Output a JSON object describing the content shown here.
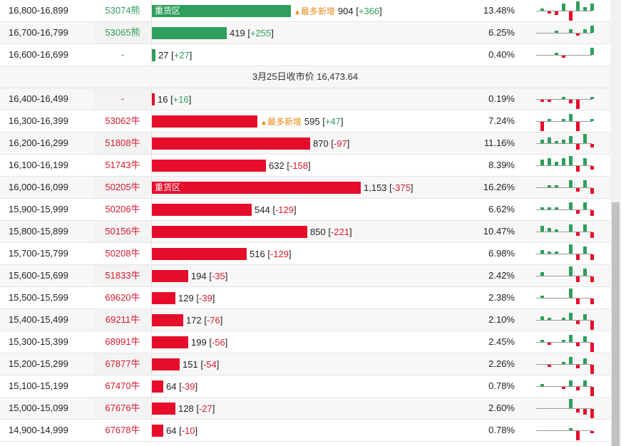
{
  "colors": {
    "up": "#2e9f5c",
    "down": "#e60d2b",
    "note": "#e88a16"
  },
  "separator": {
    "label": "3月25日收市价 16,473.64"
  },
  "upper_rows": [
    {
      "range": "16,800-16,899",
      "ent": "53074熊",
      "bar": 0.5,
      "tag": "重货区",
      "note": "最多新增",
      "value": "904",
      "diff": "+366",
      "pct": "13.48%",
      "spark": [
        1,
        -1,
        -2,
        4,
        -5,
        5,
        2,
        4
      ]
    },
    {
      "range": "16,700-16,799",
      "ent": "53065熊",
      "bar": 0.27,
      "tag": "",
      "note": "",
      "value": "419",
      "diff": "+255",
      "pct": "6.25%",
      "spark": [
        0,
        0,
        1,
        0,
        2,
        -1,
        2,
        4
      ]
    },
    {
      "range": "16,600-16,699",
      "ent": "-",
      "bar": 0.014,
      "tag": "",
      "note": "",
      "value": "27",
      "diff": "+27",
      "pct": "0.40%",
      "spark": [
        0,
        0,
        1,
        -1,
        0,
        0,
        0,
        4
      ]
    }
  ],
  "lower_rows": [
    {
      "range": "16,400-16,499",
      "ent": "-",
      "bar": 0.009,
      "tag": "",
      "note": "",
      "value": "16",
      "diff": "+16",
      "pct": "0.19%",
      "spark": [
        -1,
        -1,
        0,
        1,
        -2,
        -5,
        0,
        1
      ]
    },
    {
      "range": "16,300-16,399",
      "ent": "53062牛",
      "bar": 0.38,
      "tag": "",
      "note": "最多新增",
      "value": "595",
      "diff": "+47",
      "pct": "7.24%",
      "spark": [
        -5,
        1,
        0,
        1,
        4,
        -5,
        0,
        1
      ]
    },
    {
      "range": "16,200-16,299",
      "ent": "51808牛",
      "bar": 0.57,
      "tag": "",
      "note": "",
      "value": "870",
      "diff": "-97",
      "pct": "11.16%",
      "spark": [
        2,
        3,
        1,
        2,
        4,
        -3,
        5,
        -2
      ]
    },
    {
      "range": "16,100-16,199",
      "ent": "51743牛",
      "bar": 0.41,
      "tag": "",
      "note": "",
      "value": "632",
      "diff": "-158",
      "pct": "8.39%",
      "spark": [
        3,
        4,
        2,
        4,
        5,
        -3,
        4,
        -2
      ]
    },
    {
      "range": "16,000-16,099",
      "ent": "50205牛",
      "bar": 0.75,
      "tag": "重货区",
      "note": "",
      "value": "1,153",
      "diff": "-375",
      "pct": "16.26%",
      "spark": [
        0,
        1,
        1,
        0,
        4,
        -2,
        4,
        -3
      ]
    },
    {
      "range": "15,900-15,999",
      "ent": "50206牛",
      "bar": 0.36,
      "tag": "",
      "note": "",
      "value": "544",
      "diff": "-129",
      "pct": "6.62%",
      "spark": [
        1,
        1,
        1,
        0,
        4,
        -2,
        4,
        -3
      ]
    },
    {
      "range": "15,800-15,899",
      "ent": "50156牛",
      "bar": 0.56,
      "tag": "",
      "note": "",
      "value": "850",
      "diff": "-221",
      "pct": "10.47%",
      "spark": [
        3,
        2,
        1,
        0,
        4,
        -2,
        4,
        -3
      ]
    },
    {
      "range": "15,700-15,799",
      "ent": "50208牛",
      "bar": 0.34,
      "tag": "",
      "note": "",
      "value": "516",
      "diff": "-129",
      "pct": "6.98%",
      "spark": [
        2,
        1,
        1,
        0,
        5,
        -3,
        4,
        -3
      ]
    },
    {
      "range": "15,600-15,699",
      "ent": "51833牛",
      "bar": 0.13,
      "tag": "",
      "note": "",
      "value": "194",
      "diff": "-35",
      "pct": "2.42%",
      "spark": [
        2,
        0,
        0,
        0,
        5,
        -3,
        4,
        -3
      ]
    },
    {
      "range": "15,500-15,599",
      "ent": "69620牛",
      "bar": 0.085,
      "tag": "",
      "note": "",
      "value": "129",
      "diff": "-39",
      "pct": "2.38%",
      "spark": [
        1,
        0,
        0,
        0,
        5,
        -3,
        0,
        -3
      ]
    },
    {
      "range": "15,400-15,499",
      "ent": "69211牛",
      "bar": 0.113,
      "tag": "",
      "note": "",
      "value": "172",
      "diff": "-76",
      "pct": "2.10%",
      "spark": [
        2,
        1,
        0,
        1,
        4,
        -2,
        3,
        -5
      ]
    },
    {
      "range": "15,300-15,399",
      "ent": "68991牛",
      "bar": 0.13,
      "tag": "",
      "note": "",
      "value": "199",
      "diff": "-56",
      "pct": "2.45%",
      "spark": [
        1,
        -1,
        0,
        1,
        4,
        -2,
        3,
        -5
      ]
    },
    {
      "range": "15,200-15,299",
      "ent": "67877牛",
      "bar": 0.1,
      "tag": "",
      "note": "",
      "value": "151",
      "diff": "-54",
      "pct": "2.26%",
      "spark": [
        0,
        -1,
        0,
        1,
        4,
        -2,
        3,
        -5
      ]
    },
    {
      "range": "15,100-15,199",
      "ent": "67470牛",
      "bar": 0.042,
      "tag": "",
      "note": "",
      "value": "64",
      "diff": "-39",
      "pct": "0.78%",
      "spark": [
        1,
        0,
        0,
        -1,
        3,
        -2,
        3,
        -5
      ]
    },
    {
      "range": "15,000-15,099",
      "ent": "67676牛",
      "bar": 0.084,
      "tag": "",
      "note": "",
      "value": "128",
      "diff": "-27",
      "pct": "2.60%",
      "spark": [
        0,
        0,
        0,
        0,
        5,
        -2,
        -3,
        -5
      ]
    },
    {
      "range": "14,900-14,999",
      "ent": "67678牛",
      "bar": 0.042,
      "tag": "",
      "note": "",
      "value": "64",
      "diff": "-10",
      "pct": "0.78%",
      "spark": [
        0,
        0,
        0,
        0,
        1,
        -5,
        0,
        -1
      ]
    }
  ]
}
